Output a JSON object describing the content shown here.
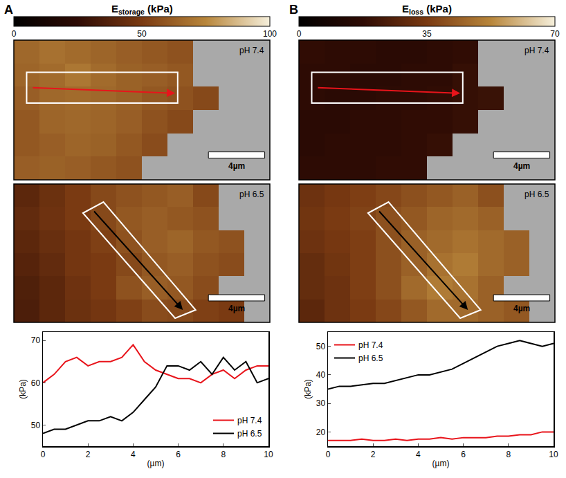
{
  "chart_data": [
    {
      "panel": "A",
      "type": "line",
      "title": "Estorage (kPa)",
      "colorbar": {
        "range": [
          0,
          100
        ],
        "ticks": [
          0,
          50,
          100
        ]
      },
      "maps": [
        {
          "label": "pH 7.4",
          "scale_bar": "4µm",
          "cells": [
            [
              65,
              68,
              66,
              64,
              62,
              60,
              58,
              null,
              null,
              null
            ],
            [
              64,
              66,
              70,
              66,
              63,
              62,
              60,
              null,
              null,
              null
            ],
            [
              62,
              65,
              66,
              65,
              63,
              60,
              58,
              55,
              null,
              null
            ],
            [
              60,
              64,
              65,
              64,
              62,
              58,
              55,
              null,
              null,
              null
            ],
            [
              60,
              62,
              64,
              63,
              60,
              56,
              null,
              null,
              null,
              null
            ],
            [
              62,
              63,
              62,
              60,
              58,
              null,
              null,
              null,
              null,
              null
            ]
          ]
        },
        {
          "label": "pH 6.5",
          "scale_bar": "4µm",
          "cells": [
            [
              40,
              45,
              50,
              55,
              58,
              60,
              62,
              55,
              null,
              null
            ],
            [
              42,
              46,
              50,
              55,
              60,
              62,
              60,
              58,
              null,
              null
            ],
            [
              40,
              44,
              48,
              52,
              58,
              62,
              64,
              60,
              58,
              null
            ],
            [
              38,
              42,
              48,
              50,
              55,
              60,
              62,
              58,
              56,
              null
            ],
            [
              36,
              40,
              46,
              50,
              58,
              62,
              60,
              56,
              null,
              null
            ],
            [
              35,
              40,
              45,
              48,
              52,
              56,
              55,
              52,
              50,
              null
            ]
          ]
        }
      ],
      "x_label": "(µm)",
      "y_label": "(kPa)",
      "xlim": [
        0,
        10
      ],
      "xticks": [
        0,
        2,
        4,
        6,
        8,
        10
      ],
      "ylim": [
        45,
        72
      ],
      "yticks": [
        50,
        60,
        70
      ],
      "legend": "lower right",
      "x": [
        0,
        0.5,
        1,
        1.5,
        2,
        2.5,
        3,
        3.5,
        4,
        4.5,
        5,
        5.5,
        6,
        6.5,
        7,
        7.5,
        8,
        8.5,
        9,
        9.5,
        10
      ],
      "series": [
        {
          "name": "pH 7.4",
          "color": "#e8141b",
          "values": [
            60,
            62,
            65,
            66,
            64,
            65,
            65,
            66,
            69,
            65,
            63,
            62,
            61,
            61,
            60,
            62,
            63,
            61,
            63,
            64,
            64
          ]
        },
        {
          "name": "pH 6.5",
          "color": "#000000",
          "values": [
            48,
            49,
            49,
            50,
            51,
            51,
            52,
            51,
            53,
            56,
            59,
            64,
            64,
            63,
            65,
            62,
            66,
            63,
            65,
            60,
            61
          ]
        }
      ]
    },
    {
      "panel": "B",
      "type": "line",
      "title": "Eloss (kPa)",
      "colorbar": {
        "range": [
          0,
          70
        ],
        "ticks": [
          0,
          35,
          70
        ]
      },
      "maps": [
        {
          "label": "pH 7.4",
          "scale_bar": "4µm",
          "cells": [
            [
              18,
              17,
              17,
              16,
              16,
              17,
              18,
              null,
              null,
              null
            ],
            [
              17,
              17,
              16,
              16,
              17,
              17,
              19,
              null,
              null,
              null
            ],
            [
              17,
              16,
              16,
              17,
              17,
              18,
              19,
              20,
              null,
              null
            ],
            [
              16,
              16,
              17,
              17,
              18,
              18,
              19,
              null,
              null,
              null
            ],
            [
              16,
              17,
              17,
              17,
              18,
              19,
              null,
              null,
              null,
              null
            ],
            [
              17,
              17,
              17,
              18,
              18,
              null,
              null,
              null,
              null,
              null
            ]
          ]
        },
        {
          "label": "pH 6.5",
          "scale_bar": "4µm",
          "cells": [
            [
              32,
              34,
              36,
              38,
              40,
              42,
              44,
              40,
              null,
              null
            ],
            [
              33,
              35,
              37,
              40,
              42,
              45,
              46,
              44,
              null,
              null
            ],
            [
              32,
              34,
              36,
              40,
              44,
              46,
              48,
              46,
              44,
              null
            ],
            [
              30,
              33,
              36,
              40,
              44,
              48,
              50,
              46,
              44,
              null
            ],
            [
              30,
              32,
              36,
              40,
              46,
              50,
              48,
              44,
              null,
              null
            ],
            [
              28,
              32,
              35,
              38,
              42,
              46,
              46,
              44,
              42,
              null
            ]
          ]
        }
      ],
      "x_label": "(µm)",
      "y_label": "(kPa)",
      "xlim": [
        0,
        10
      ],
      "xticks": [
        0,
        2,
        4,
        6,
        8,
        10
      ],
      "ylim": [
        15,
        55
      ],
      "yticks": [
        20,
        30,
        40,
        50
      ],
      "legend": "upper left",
      "x": [
        0,
        0.5,
        1,
        1.5,
        2,
        2.5,
        3,
        3.5,
        4,
        4.5,
        5,
        5.5,
        6,
        6.5,
        7,
        7.5,
        8,
        8.5,
        9,
        9.5,
        10
      ],
      "series": [
        {
          "name": "pH 7.4",
          "color": "#e8141b",
          "values": [
            17,
            17,
            17,
            17.5,
            17,
            17,
            17.5,
            17,
            17.5,
            17.5,
            18,
            17.5,
            18,
            18,
            18,
            18.5,
            18.5,
            19,
            19,
            20,
            20
          ]
        },
        {
          "name": "pH 6.5",
          "color": "#000000",
          "values": [
            35,
            36,
            36,
            36.5,
            37,
            37,
            38,
            39,
            40,
            40,
            41,
            42,
            44,
            46,
            48,
            50,
            51,
            52,
            51,
            50,
            51
          ]
        }
      ]
    }
  ]
}
